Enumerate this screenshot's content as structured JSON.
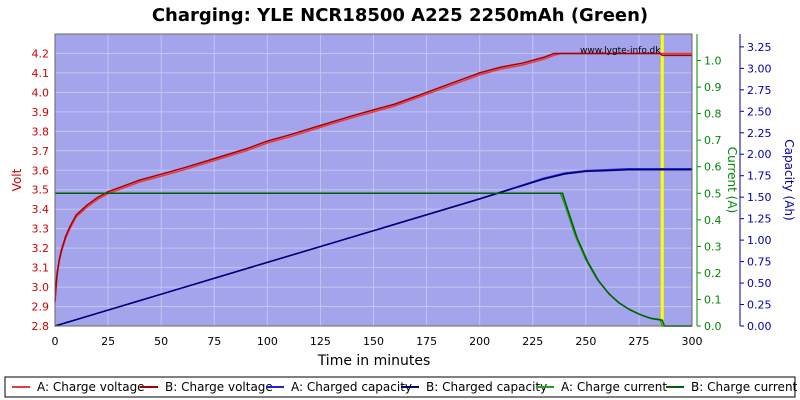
{
  "chart_data": {
    "type": "line",
    "title": "Charging: YLE NCR18500 A225 2250mAh (Green)",
    "watermark": "www.lygte-info.dk",
    "xlabel": "Time in minutes",
    "ylabel_left": "Volt",
    "ylabel_right1": "Current (A)",
    "ylabel_right2": "Capacity (Ah)",
    "xlim": [
      0,
      300
    ],
    "ylim_left": [
      2.8,
      4.3
    ],
    "ylim_right1": [
      0,
      1.1
    ],
    "ylim_right2": [
      0,
      3.4
    ],
    "x_ticks": [
      "0",
      "25",
      "50",
      "75",
      "100",
      "125",
      "150",
      "175",
      "200",
      "225",
      "250",
      "275",
      "300"
    ],
    "y_left_ticks": [
      "2.8",
      "2.9",
      "3.0",
      "3.1",
      "3.2",
      "3.3",
      "3.4",
      "3.5",
      "3.6",
      "3.7",
      "3.8",
      "3.9",
      "4.0",
      "4.1",
      "4.2"
    ],
    "y_right1_ticks": [
      "0.0",
      "0.1",
      "0.2",
      "0.3",
      "0.4",
      "0.5",
      "0.6",
      "0.7",
      "0.8",
      "0.9",
      "1.0"
    ],
    "y_right2_ticks": [
      "0.00",
      "0.25",
      "0.50",
      "0.75",
      "1.00",
      "1.25",
      "1.50",
      "1.75",
      "2.00",
      "2.25",
      "2.50",
      "2.75",
      "3.00",
      "3.25"
    ],
    "grid": true,
    "legend_position": "bottom",
    "colors": {
      "plot_bg": "#a4a4ec",
      "grid": "#c4c4f2",
      "voltage_a": "#e83a3a",
      "voltage_b": "#a80000",
      "capacity_a": "#2020e0",
      "capacity_b": "#000070",
      "current_a": "#22a022",
      "current_b": "#006000",
      "marker": "#ffff00",
      "left_axis": "#d00000",
      "right1_axis": "#008800",
      "right2_axis": "#0000a8"
    },
    "marker_x": 286,
    "series": [
      {
        "name": "A: Charge voltage",
        "axis": "left",
        "color_key": "voltage_a",
        "x": [
          0,
          0.5,
          1,
          2,
          3,
          5,
          7,
          10,
          15,
          20,
          25,
          30,
          40,
          50,
          60,
          75,
          90,
          100,
          110,
          125,
          140,
          150,
          160,
          175,
          185,
          195,
          200,
          210,
          220,
          230,
          235,
          238,
          240,
          250,
          260,
          270,
          280,
          285,
          286,
          290,
          300
        ],
        "y": [
          2.92,
          3.0,
          3.06,
          3.13,
          3.18,
          3.25,
          3.3,
          3.36,
          3.41,
          3.45,
          3.48,
          3.5,
          3.54,
          3.57,
          3.6,
          3.65,
          3.7,
          3.74,
          3.77,
          3.82,
          3.87,
          3.9,
          3.93,
          3.99,
          4.03,
          4.07,
          4.09,
          4.12,
          4.14,
          4.17,
          4.19,
          4.2,
          4.2,
          4.2,
          4.2,
          4.2,
          4.2,
          4.2,
          4.2,
          4.2,
          4.2
        ]
      },
      {
        "name": "B: Charge voltage",
        "axis": "left",
        "color_key": "voltage_b",
        "x": [
          0,
          0.5,
          1,
          2,
          3,
          5,
          7,
          10,
          15,
          20,
          25,
          30,
          40,
          50,
          60,
          75,
          90,
          100,
          110,
          125,
          140,
          150,
          160,
          175,
          185,
          195,
          200,
          210,
          220,
          230,
          235,
          238,
          240,
          250,
          260,
          270,
          280,
          285,
          286,
          290,
          300
        ],
        "y": [
          2.93,
          3.01,
          3.07,
          3.14,
          3.19,
          3.26,
          3.31,
          3.37,
          3.42,
          3.46,
          3.49,
          3.51,
          3.55,
          3.58,
          3.61,
          3.66,
          3.71,
          3.75,
          3.78,
          3.83,
          3.88,
          3.91,
          3.94,
          4.0,
          4.04,
          4.08,
          4.1,
          4.13,
          4.15,
          4.18,
          4.2,
          4.2,
          4.2,
          4.2,
          4.2,
          4.2,
          4.2,
          4.2,
          4.19,
          4.19,
          4.19
        ]
      },
      {
        "name": "A: Charged capacity",
        "axis": "right2",
        "color_key": "capacity_a",
        "x": [
          0,
          50,
          100,
          150,
          200,
          230,
          240,
          250,
          260,
          270,
          280,
          285,
          286,
          300
        ],
        "y": [
          0.0,
          0.37,
          0.74,
          1.11,
          1.48,
          1.72,
          1.78,
          1.81,
          1.82,
          1.83,
          1.83,
          1.83,
          1.83,
          1.83
        ]
      },
      {
        "name": "B: Charged capacity",
        "axis": "right2",
        "color_key": "capacity_b",
        "x": [
          0,
          50,
          100,
          150,
          200,
          230,
          240,
          250,
          260,
          270,
          280,
          285,
          286,
          300
        ],
        "y": [
          0.0,
          0.37,
          0.74,
          1.11,
          1.48,
          1.71,
          1.77,
          1.8,
          1.81,
          1.82,
          1.82,
          1.82,
          1.82,
          1.82
        ]
      },
      {
        "name": "A: Charge current",
        "axis": "right1",
        "color_key": "current_a",
        "x": [
          0,
          238,
          240,
          245,
          250,
          255,
          260,
          265,
          270,
          275,
          280,
          285,
          286,
          300
        ],
        "y": [
          0.5,
          0.5,
          0.46,
          0.34,
          0.25,
          0.18,
          0.13,
          0.09,
          0.065,
          0.045,
          0.03,
          0.025,
          0.0,
          0.0
        ]
      },
      {
        "name": "B: Charge current",
        "axis": "right1",
        "color_key": "current_b",
        "x": [
          0,
          239,
          241,
          246,
          251,
          256,
          261,
          266,
          271,
          276,
          281,
          286,
          287,
          300
        ],
        "y": [
          0.5,
          0.5,
          0.45,
          0.33,
          0.24,
          0.17,
          0.12,
          0.085,
          0.06,
          0.042,
          0.028,
          0.022,
          0.0,
          0.0
        ]
      }
    ]
  }
}
